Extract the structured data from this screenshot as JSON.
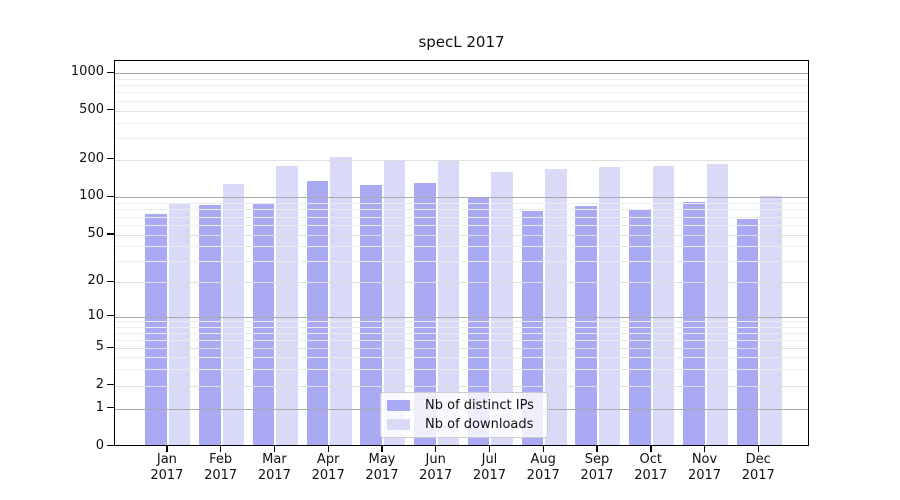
{
  "chart_data": {
    "type": "bar",
    "title": "specL 2017",
    "months": [
      "Jan",
      "Feb",
      "Mar",
      "Apr",
      "May",
      "Jun",
      "Jul",
      "Aug",
      "Sep",
      "Oct",
      "Nov",
      "Dec"
    ],
    "year": "2017",
    "categories": [
      "Jan 2017",
      "Feb 2017",
      "Mar 2017",
      "Apr 2017",
      "May 2017",
      "Jun 2017",
      "Jul 2017",
      "Aug 2017",
      "Sep 2017",
      "Oct 2017",
      "Nov 2017",
      "Dec 2017"
    ],
    "series": [
      {
        "name": "Nb of distinct IPs",
        "color": "#aaaaf4",
        "values": [
          73,
          87,
          88,
          134,
          126,
          130,
          101,
          78,
          85,
          79,
          92,
          67
        ]
      },
      {
        "name": "Nb of downloads",
        "color": "#d9d9f8",
        "values": [
          90,
          128,
          177,
          211,
          194,
          197,
          159,
          169,
          173,
          179,
          184,
          103
        ]
      }
    ],
    "y_ticks": [
      0,
      1,
      2,
      5,
      10,
      20,
      50,
      100,
      200,
      500,
      1000
    ],
    "y_scale": "symlog",
    "ylim": [
      0,
      1000
    ],
    "grid": true,
    "legend_position": "bottom-center"
  },
  "colors": {
    "bar_ips": "#aaaaf4",
    "bar_downloads": "#d9d9f8",
    "grid_major": "#aaaaaa",
    "grid_mid": "#dfdfdf",
    "grid_minor": "#ececec",
    "spine": "#000000",
    "background": "#ffffff",
    "text": "#111111"
  }
}
